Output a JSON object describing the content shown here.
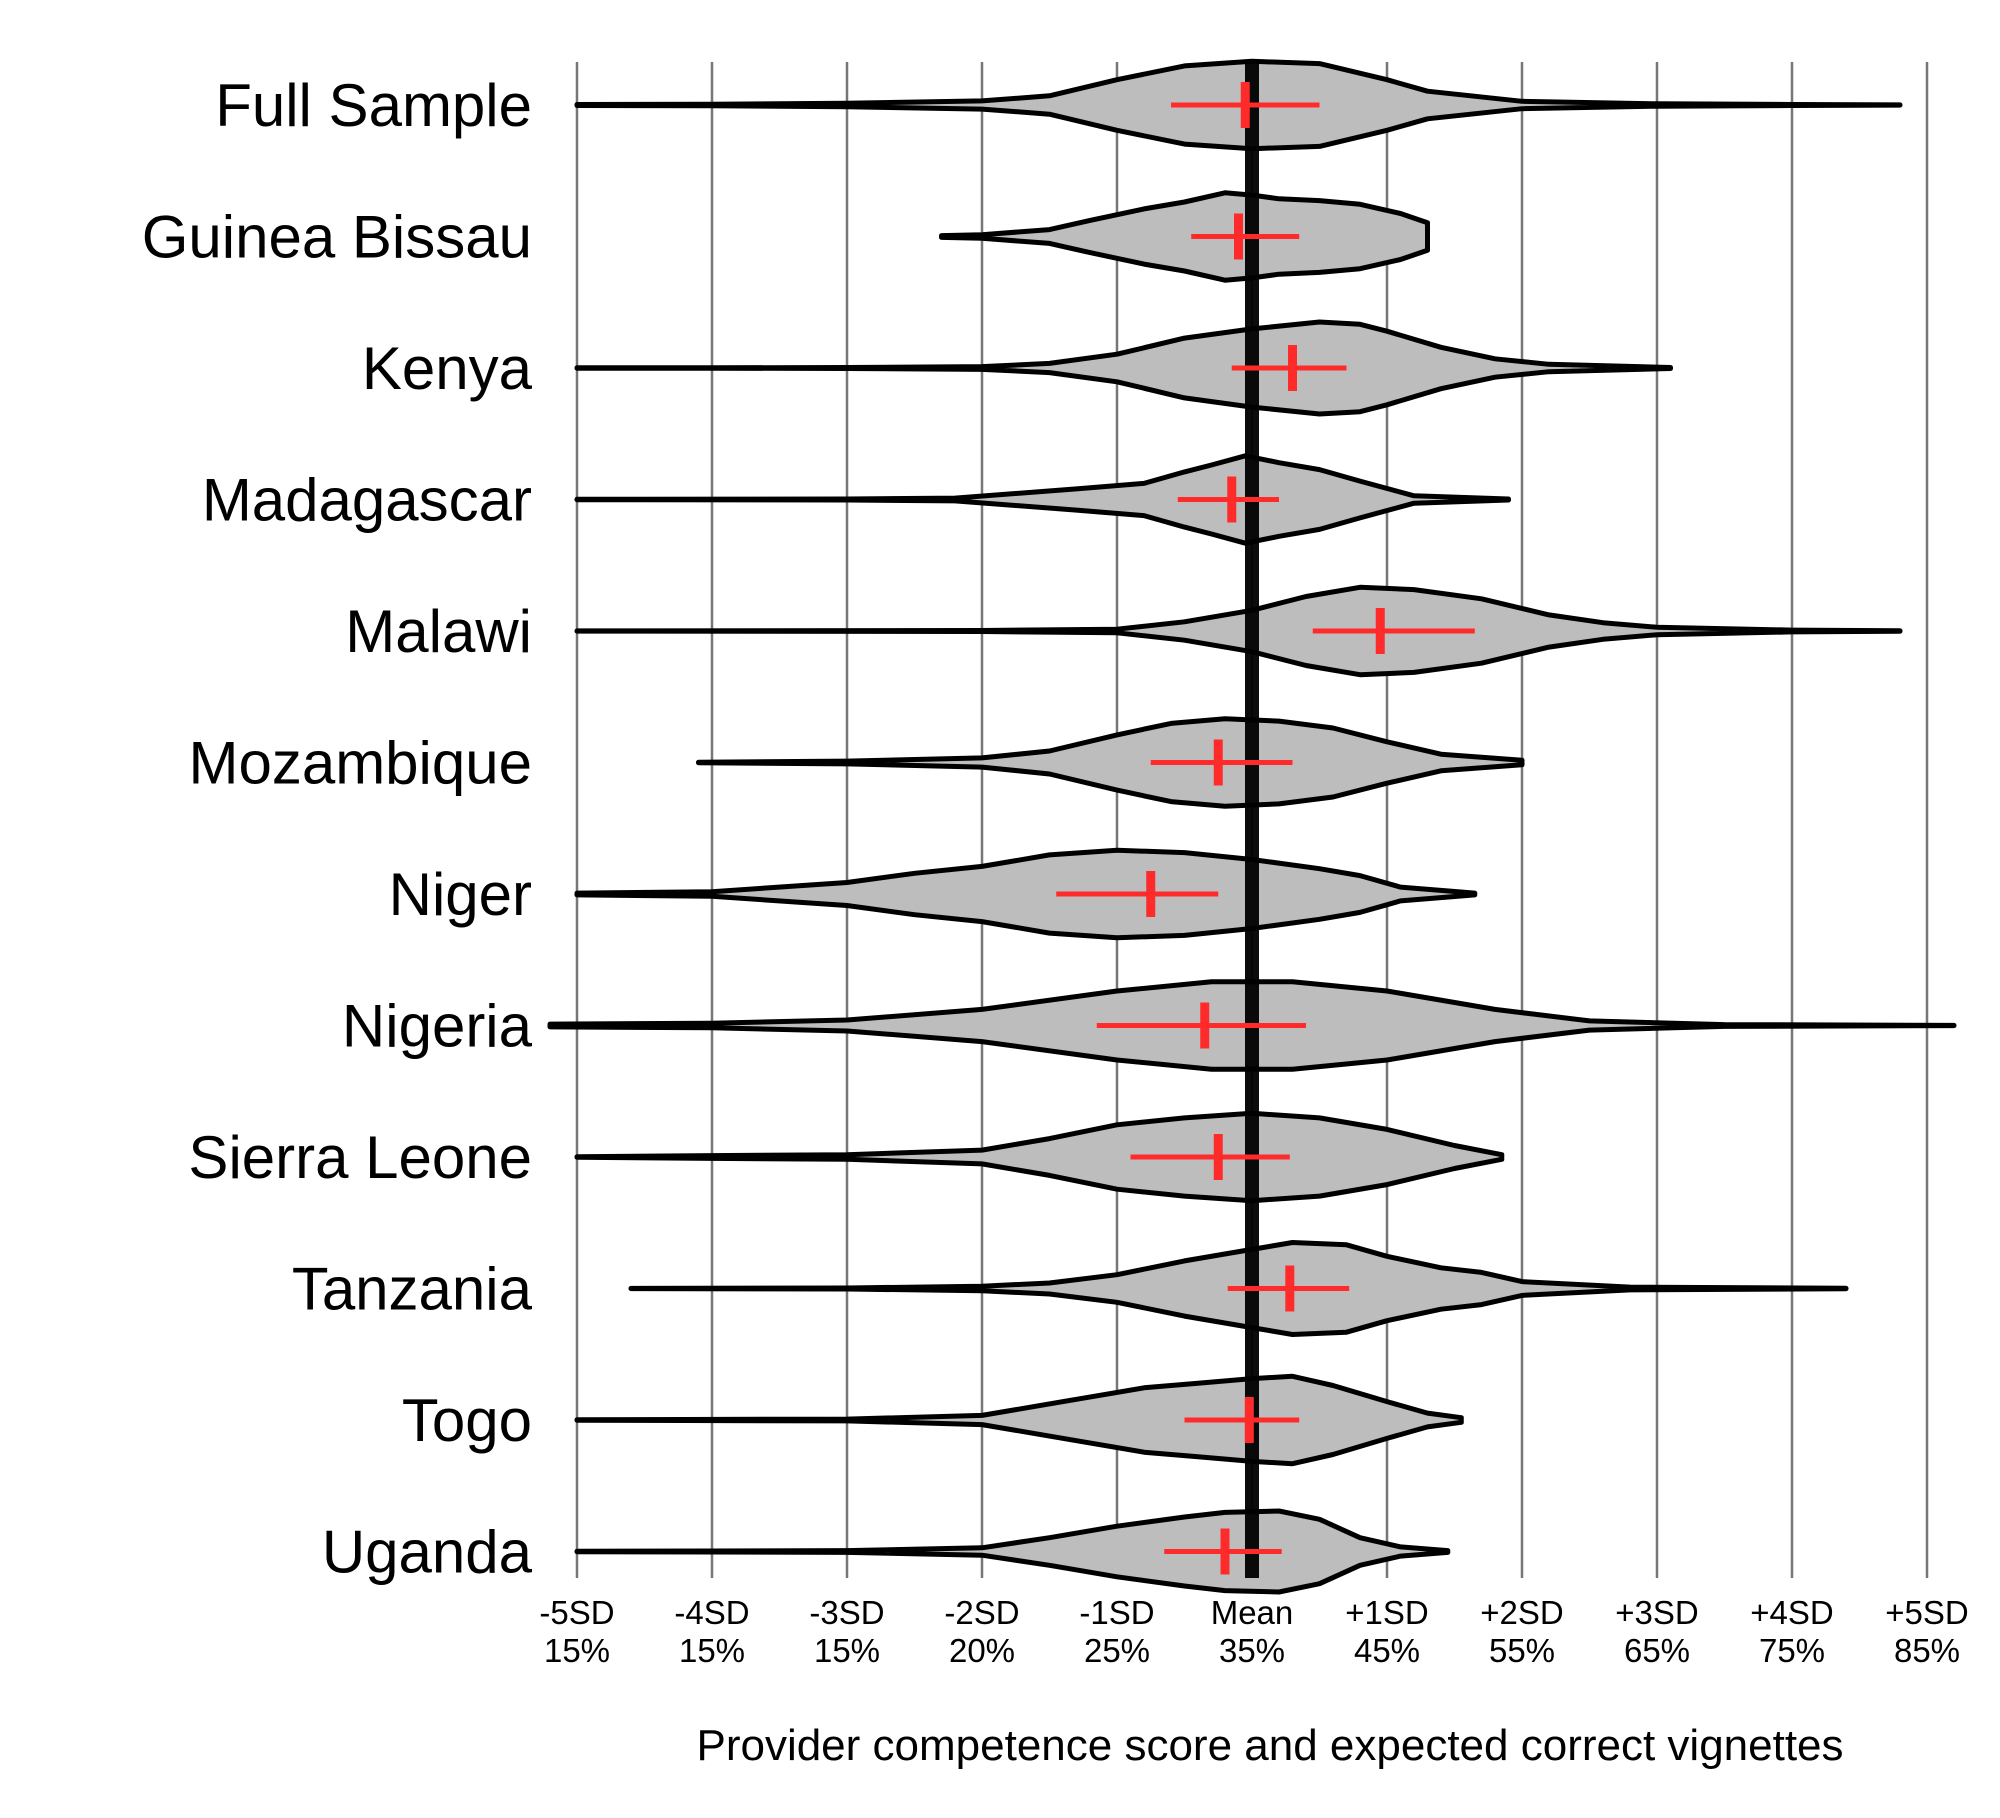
{
  "chart_data": {
    "type": "violin",
    "xlabel": "Provider competence score and expected correct vignettes",
    "x_ticks": [
      {
        "value": -5,
        "sd_label": "-5SD",
        "pct_label": "15%"
      },
      {
        "value": -4,
        "sd_label": "-4SD",
        "pct_label": "15%"
      },
      {
        "value": -3,
        "sd_label": "-3SD",
        "pct_label": "15%"
      },
      {
        "value": -2,
        "sd_label": "-2SD",
        "pct_label": "20%"
      },
      {
        "value": -1,
        "sd_label": "-1SD",
        "pct_label": "25%"
      },
      {
        "value": 0,
        "sd_label": "Mean",
        "pct_label": "35%"
      },
      {
        "value": 1,
        "sd_label": "+1SD",
        "pct_label": "45%"
      },
      {
        "value": 2,
        "sd_label": "+2SD",
        "pct_label": "55%"
      },
      {
        "value": 3,
        "sd_label": "+3SD",
        "pct_label": "65%"
      },
      {
        "value": 4,
        "sd_label": "+4SD",
        "pct_label": "75%"
      },
      {
        "value": 5,
        "sd_label": "+5SD",
        "pct_label": "85%"
      }
    ],
    "xlim": [
      -5,
      5
    ],
    "grid": true,
    "mean_reference_line": 0,
    "series": [
      {
        "name": "Full Sample",
        "mean": -0.05,
        "ci": [
          -0.6,
          0.5
        ],
        "range": [
          -5.0,
          4.8
        ],
        "density": [
          [
            -5.0,
            0.01
          ],
          [
            -4.0,
            0.015
          ],
          [
            -3.0,
            0.04
          ],
          [
            -2.0,
            0.09
          ],
          [
            -1.5,
            0.2
          ],
          [
            -1.0,
            0.55
          ],
          [
            -0.5,
            0.85
          ],
          [
            0.0,
            0.95
          ],
          [
            0.5,
            0.9
          ],
          [
            1.0,
            0.55
          ],
          [
            1.3,
            0.3
          ],
          [
            2.0,
            0.08
          ],
          [
            3.0,
            0.025
          ],
          [
            4.0,
            0.01
          ],
          [
            4.8,
            0.003
          ]
        ]
      },
      {
        "name": "Guinea Bissau",
        "mean": -0.1,
        "ci": [
          -0.45,
          0.35
        ],
        "range": [
          -2.3,
          1.3
        ],
        "density": [
          [
            -2.3,
            0.02
          ],
          [
            -2.0,
            0.04
          ],
          [
            -1.5,
            0.15
          ],
          [
            -1.2,
            0.35
          ],
          [
            -0.8,
            0.6
          ],
          [
            -0.5,
            0.75
          ],
          [
            -0.2,
            0.95
          ],
          [
            0.0,
            0.9
          ],
          [
            0.2,
            0.82
          ],
          [
            0.5,
            0.78
          ],
          [
            0.8,
            0.7
          ],
          [
            1.1,
            0.5
          ],
          [
            1.3,
            0.3
          ]
        ]
      },
      {
        "name": "Kenya",
        "mean": 0.3,
        "ci": [
          -0.15,
          0.7
        ],
        "range": [
          -5.0,
          3.1
        ],
        "density": [
          [
            -5.0,
            0.005
          ],
          [
            -4.0,
            0.005
          ],
          [
            -3.0,
            0.01
          ],
          [
            -2.0,
            0.03
          ],
          [
            -1.5,
            0.1
          ],
          [
            -1.0,
            0.3
          ],
          [
            -0.5,
            0.65
          ],
          [
            0.0,
            0.85
          ],
          [
            0.5,
            1.0
          ],
          [
            0.8,
            0.95
          ],
          [
            1.0,
            0.8
          ],
          [
            1.4,
            0.45
          ],
          [
            1.8,
            0.2
          ],
          [
            2.2,
            0.08
          ],
          [
            3.1,
            0.01
          ]
        ]
      },
      {
        "name": "Madagascar",
        "mean": -0.15,
        "ci": [
          -0.55,
          0.2
        ],
        "range": [
          -5.0,
          1.9
        ],
        "density": [
          [
            -5.0,
            0.005
          ],
          [
            -3.0,
            0.01
          ],
          [
            -2.2,
            0.03
          ],
          [
            -1.3,
            0.23
          ],
          [
            -0.8,
            0.35
          ],
          [
            -0.5,
            0.6
          ],
          [
            -0.3,
            0.75
          ],
          [
            -0.05,
            0.95
          ],
          [
            0.2,
            0.8
          ],
          [
            0.5,
            0.65
          ],
          [
            0.8,
            0.4
          ],
          [
            1.2,
            0.08
          ],
          [
            1.9,
            0.01
          ]
        ]
      },
      {
        "name": "Malawi",
        "mean": 0.95,
        "ci": [
          0.45,
          1.65
        ],
        "range": [
          -5.0,
          4.8
        ],
        "density": [
          [
            -5.0,
            0.003
          ],
          [
            -2.0,
            0.01
          ],
          [
            -1.0,
            0.04
          ],
          [
            -0.5,
            0.2
          ],
          [
            0.0,
            0.45
          ],
          [
            0.4,
            0.75
          ],
          [
            0.8,
            0.95
          ],
          [
            1.2,
            0.9
          ],
          [
            1.7,
            0.7
          ],
          [
            2.2,
            0.35
          ],
          [
            2.6,
            0.18
          ],
          [
            3.0,
            0.08
          ],
          [
            4.0,
            0.02
          ],
          [
            4.8,
            0.005
          ]
        ]
      },
      {
        "name": "Mozambique",
        "mean": -0.25,
        "ci": [
          -0.75,
          0.3
        ],
        "range": [
          -4.1,
          2.0
        ],
        "density": [
          [
            -4.1,
            0.005
          ],
          [
            -3.0,
            0.03
          ],
          [
            -2.0,
            0.1
          ],
          [
            -1.5,
            0.25
          ],
          [
            -1.0,
            0.6
          ],
          [
            -0.6,
            0.85
          ],
          [
            -0.2,
            0.95
          ],
          [
            0.2,
            0.9
          ],
          [
            0.6,
            0.75
          ],
          [
            1.0,
            0.45
          ],
          [
            1.4,
            0.18
          ],
          [
            2.0,
            0.05
          ]
        ]
      },
      {
        "name": "Niger",
        "mean": -0.75,
        "ci": [
          -1.45,
          -0.25
        ],
        "range": [
          -5.0,
          1.65
        ],
        "density": [
          [
            -5.0,
            0.02
          ],
          [
            -4.0,
            0.05
          ],
          [
            -3.0,
            0.25
          ],
          [
            -2.5,
            0.45
          ],
          [
            -2.0,
            0.6
          ],
          [
            -1.5,
            0.85
          ],
          [
            -1.0,
            0.95
          ],
          [
            -0.5,
            0.9
          ],
          [
            0.0,
            0.75
          ],
          [
            0.5,
            0.55
          ],
          [
            0.8,
            0.4
          ],
          [
            1.1,
            0.15
          ],
          [
            1.65,
            0.02
          ]
        ]
      },
      {
        "name": "Nigeria",
        "mean": -0.35,
        "ci": [
          -1.15,
          0.4
        ],
        "range": [
          -5.2,
          5.2
        ],
        "density": [
          [
            -5.2,
            0.03
          ],
          [
            -4.0,
            0.05
          ],
          [
            -3.0,
            0.12
          ],
          [
            -2.0,
            0.35
          ],
          [
            -1.0,
            0.75
          ],
          [
            -0.3,
            0.95
          ],
          [
            0.3,
            0.95
          ],
          [
            1.0,
            0.75
          ],
          [
            1.8,
            0.35
          ],
          [
            2.5,
            0.1
          ],
          [
            3.5,
            0.02
          ],
          [
            5.2,
            0.003
          ]
        ]
      },
      {
        "name": "Sierra Leone",
        "mean": -0.25,
        "ci": [
          -0.9,
          0.28
        ],
        "range": [
          -5.0,
          1.85
        ],
        "density": [
          [
            -5.0,
            0.005
          ],
          [
            -4.0,
            0.03
          ],
          [
            -3.0,
            0.05
          ],
          [
            -2.0,
            0.15
          ],
          [
            -1.5,
            0.4
          ],
          [
            -1.0,
            0.7
          ],
          [
            -0.5,
            0.85
          ],
          [
            0.0,
            0.95
          ],
          [
            0.5,
            0.85
          ],
          [
            1.0,
            0.6
          ],
          [
            1.5,
            0.25
          ],
          [
            1.85,
            0.05
          ]
        ]
      },
      {
        "name": "Tanzania",
        "mean": 0.28,
        "ci": [
          -0.18,
          0.72
        ],
        "range": [
          -4.6,
          4.4
        ],
        "density": [
          [
            -4.6,
            0.003
          ],
          [
            -3.0,
            0.01
          ],
          [
            -2.0,
            0.05
          ],
          [
            -1.5,
            0.12
          ],
          [
            -1.0,
            0.3
          ],
          [
            -0.5,
            0.6
          ],
          [
            0.0,
            0.85
          ],
          [
            0.3,
            1.0
          ],
          [
            0.7,
            0.95
          ],
          [
            1.0,
            0.7
          ],
          [
            1.4,
            0.45
          ],
          [
            1.7,
            0.35
          ],
          [
            2.0,
            0.15
          ],
          [
            2.8,
            0.03
          ],
          [
            4.4,
            0.005
          ]
        ]
      },
      {
        "name": "Togo",
        "mean": -0.02,
        "ci": [
          -0.5,
          0.35
        ],
        "range": [
          -5.0,
          1.55
        ],
        "density": [
          [
            -5.0,
            0.005
          ],
          [
            -4.2,
            0.01
          ],
          [
            -3.0,
            0.02
          ],
          [
            -2.0,
            0.1
          ],
          [
            -1.3,
            0.45
          ],
          [
            -0.8,
            0.7
          ],
          [
            -0.4,
            0.8
          ],
          [
            0.0,
            0.9
          ],
          [
            0.3,
            0.95
          ],
          [
            0.6,
            0.75
          ],
          [
            1.0,
            0.4
          ],
          [
            1.3,
            0.15
          ],
          [
            1.55,
            0.05
          ]
        ]
      },
      {
        "name": "Uganda",
        "mean": -0.2,
        "ci": [
          -0.65,
          0.22
        ],
        "range": [
          -5.0,
          1.45
        ],
        "density": [
          [
            -5.0,
            0.005
          ],
          [
            -4.0,
            0.01
          ],
          [
            -3.0,
            0.02
          ],
          [
            -2.0,
            0.08
          ],
          [
            -1.5,
            0.3
          ],
          [
            -1.0,
            0.55
          ],
          [
            -0.5,
            0.75
          ],
          [
            -0.2,
            0.85
          ],
          [
            0.2,
            0.88
          ],
          [
            0.5,
            0.7
          ],
          [
            0.8,
            0.3
          ],
          [
            1.1,
            0.1
          ],
          [
            1.45,
            0.02
          ]
        ]
      }
    ],
    "colors": {
      "violin_fill": "#bdbdbd",
      "violin_stroke": "#000000",
      "ci_marker": "#ff2a2a",
      "grid": "#777777",
      "mean_line": "#000000"
    }
  }
}
